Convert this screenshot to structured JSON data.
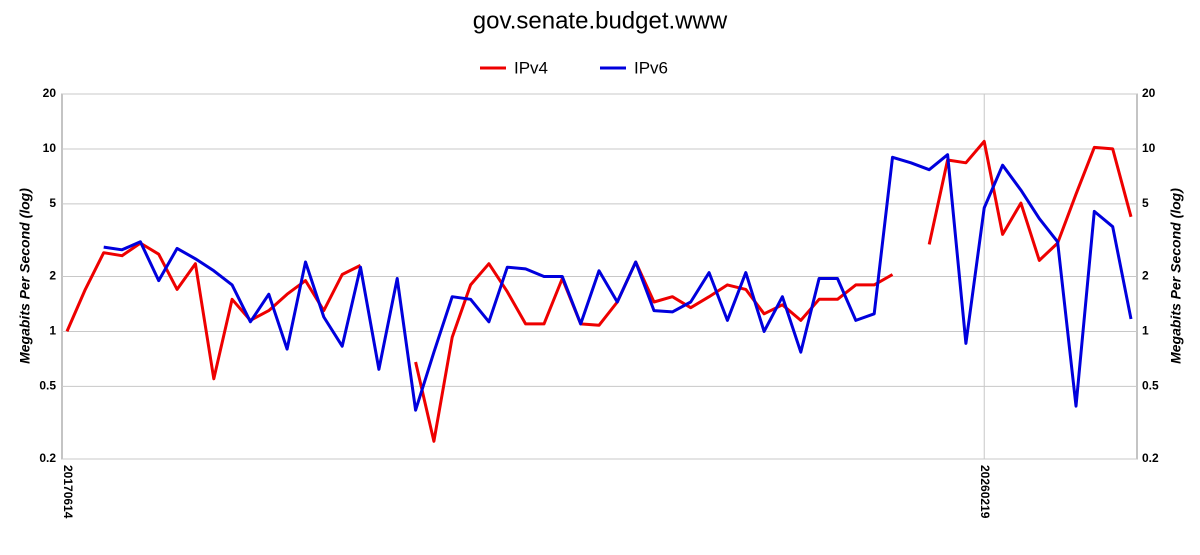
{
  "chart_data": {
    "type": "line",
    "title": "gov.senate.budget.www",
    "ylabel": "Megabits Per Second (log)",
    "categories": [
      "20170614",
      null,
      null,
      null,
      null,
      null,
      null,
      null,
      null,
      null,
      null,
      null,
      null,
      null,
      null,
      null,
      null,
      null,
      null,
      null,
      null,
      null,
      null,
      null,
      null,
      null,
      null,
      null,
      null,
      null,
      null,
      null,
      null,
      null,
      null,
      null,
      null,
      null,
      null,
      null,
      null,
      null,
      null,
      null,
      null,
      null,
      null,
      null,
      null,
      null,
      "20260219",
      null,
      null,
      null,
      null,
      null,
      null,
      null,
      null
    ],
    "series": [
      {
        "name": "IPv4",
        "color": "#ee0000",
        "values": [
          1.0,
          1.7,
          2.7,
          2.6,
          3.05,
          2.65,
          1.7,
          2.35,
          0.55,
          1.5,
          1.15,
          1.3,
          1.6,
          1.9,
          1.3,
          2.05,
          2.3,
          null,
          null,
          0.68,
          0.25,
          0.93,
          1.8,
          2.35,
          1.65,
          1.1,
          1.1,
          1.95,
          1.1,
          1.08,
          1.45,
          2.4,
          1.45,
          1.55,
          1.35,
          1.55,
          1.8,
          1.7,
          1.25,
          1.4,
          1.15,
          1.5,
          1.5,
          1.8,
          1.8,
          2.05,
          null,
          3.0,
          8.7,
          8.4,
          11,
          3.4,
          5.05,
          2.45,
          3.05,
          5.65,
          10.2,
          10,
          4.25
        ]
      },
      {
        "name": "IPv6",
        "color": "#0000dd",
        "values": [
          null,
          null,
          2.9,
          2.8,
          3.1,
          1.9,
          2.85,
          2.5,
          2.15,
          1.8,
          1.13,
          1.6,
          0.8,
          2.4,
          1.2,
          0.83,
          2.25,
          0.62,
          1.95,
          0.37,
          0.77,
          1.55,
          1.5,
          1.13,
          2.25,
          2.2,
          2.0,
          2.0,
          1.1,
          2.15,
          1.45,
          2.4,
          1.3,
          1.28,
          1.45,
          2.1,
          1.15,
          2.1,
          1.0,
          1.55,
          0.77,
          1.95,
          1.95,
          1.15,
          1.25,
          9.0,
          8.4,
          7.7,
          9.3,
          0.86,
          4.75,
          8.15,
          5.95,
          4.15,
          3.1,
          0.39,
          4.55,
          3.75,
          1.17
        ]
      }
    ],
    "log_scale": true,
    "grid": true,
    "legend": "top",
    "ylim": [
      0.2,
      20
    ],
    "yticks": [
      0.2,
      0.5,
      1,
      2,
      5,
      10,
      20
    ],
    "y2lim": [
      0.2,
      20
    ],
    "y2ticks": [
      0.2,
      0.5,
      1,
      2,
      5,
      10,
      20
    ]
  }
}
